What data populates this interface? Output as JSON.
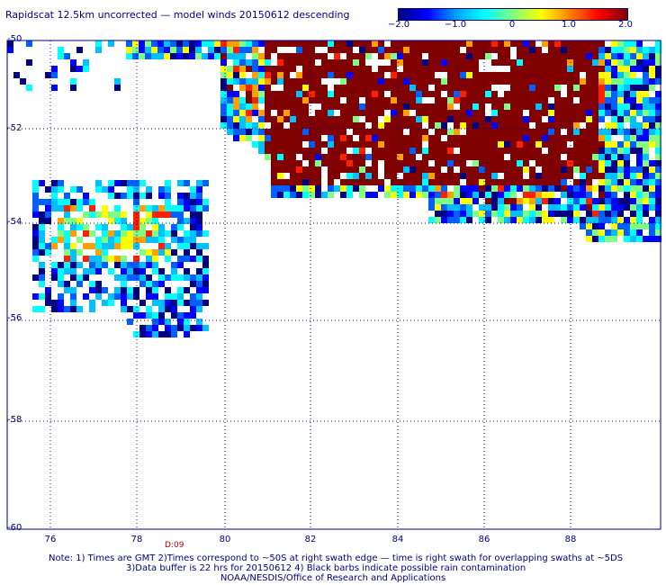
{
  "header": {
    "title": "Rapidscat 12.5km uncorrected — model winds 20150612 descending"
  },
  "colorbar": {
    "tick_labels": [
      "−2.0",
      "−1.0",
      "0",
      "1.0",
      "2.0"
    ],
    "tick_values": [
      -2.0,
      -1.0,
      0,
      1.0,
      2.0
    ],
    "range": [
      -2.0,
      2.0
    ],
    "colors": [
      "#000080",
      "#0000ff",
      "#00a0ff",
      "#00ffff",
      "#80ff80",
      "#ffff00",
      "#ff8000",
      "#ff0000",
      "#800000"
    ]
  },
  "map": {
    "lon_range": [
      75,
      90
    ],
    "lat_range": [
      -60,
      -50
    ],
    "x_tick_labels": [
      "76",
      "78",
      "80",
      "82",
      "84",
      "86",
      "88"
    ],
    "y_tick_labels": [
      "-50",
      "-52",
      "-54",
      "-56",
      "-58",
      "-60"
    ],
    "gridlines": "dotted",
    "pass_time_label": "D:09"
  },
  "footer": {
    "note_line1": "Note: 1) Times are GMT 2)Times correspond to ~50S at right swath edge — time is right swath for overlapping swaths at ~5DS",
    "note_line2": "3)Data buffer is 22 hrs for 20150612 4) Black barbs indicate possible rain contamination",
    "credit": "NOAA/NESDIS/Office of Research and Applications"
  }
}
